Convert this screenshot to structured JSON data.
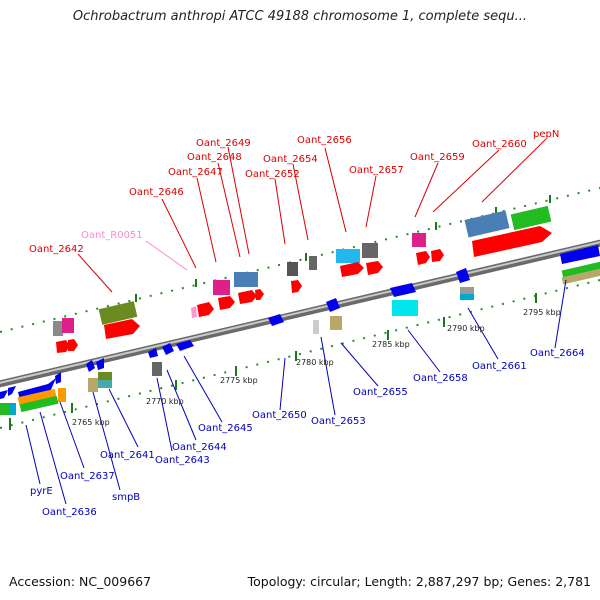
{
  "title": "Ochrobactrum anthropi ATCC 49188 chromosome 1, complete sequ...",
  "footer": {
    "accession": "Accession: NC_009667",
    "summary": "Topology: circular; Length: 2,887,297 bp; Genes: 2,781"
  },
  "colors": {
    "top_label": "#dd0000",
    "bottom_label": "#0000bb",
    "rna_label": "#ff88cc",
    "backbone": "#8a8a8a",
    "dots": "#2a8a2a"
  },
  "ticks": [
    "2765 kbp",
    "2770 kbp",
    "2775 kbp",
    "2780 kbp",
    "2785 kbp",
    "2790 kbp",
    "2795 kbp"
  ],
  "labels_top": [
    {
      "text": "Oant_2642",
      "color": "#dd0000"
    },
    {
      "text": "Oant_R0051",
      "color": "#ff88cc"
    },
    {
      "text": "Oant_2646",
      "color": "#dd0000"
    },
    {
      "text": "Oant_2647",
      "color": "#dd0000"
    },
    {
      "text": "Oant_2648",
      "color": "#dd0000"
    },
    {
      "text": "Oant_2649",
      "color": "#dd0000"
    },
    {
      "text": "Oant_2652",
      "color": "#dd0000"
    },
    {
      "text": "Oant_2654",
      "color": "#dd0000"
    },
    {
      "text": "Oant_2656",
      "color": "#dd0000"
    },
    {
      "text": "Oant_2657",
      "color": "#dd0000"
    },
    {
      "text": "Oant_2659",
      "color": "#dd0000"
    },
    {
      "text": "Oant_2660",
      "color": "#dd0000"
    },
    {
      "text": "pepN",
      "color": "#dd0000"
    }
  ],
  "labels_bottom": [
    {
      "text": "pyrE"
    },
    {
      "text": "Oant_2636"
    },
    {
      "text": "Oant_2637"
    },
    {
      "text": "smpB"
    },
    {
      "text": "Oant_2641"
    },
    {
      "text": "Oant_2643"
    },
    {
      "text": "Oant_2644"
    },
    {
      "text": "Oant_2645"
    },
    {
      "text": "Oant_2650"
    },
    {
      "text": "Oant_2653"
    },
    {
      "text": "Oant_2655"
    },
    {
      "text": "Oant_2658"
    },
    {
      "text": "Oant_2661"
    },
    {
      "text": "Oant_2664"
    }
  ]
}
